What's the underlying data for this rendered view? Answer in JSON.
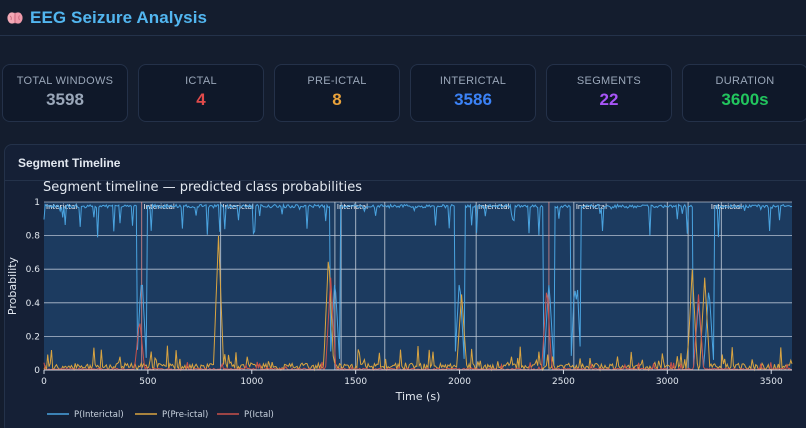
{
  "app": {
    "title": "EEG Seizure Analysis",
    "icon": "brain-icon"
  },
  "stats": [
    {
      "label": "TOTAL WINDOWS",
      "value": "3598",
      "color": "#9aa7b9"
    },
    {
      "label": "ICTAL",
      "value": "4",
      "color": "#e14b4b"
    },
    {
      "label": "PRE-ICTAL",
      "value": "8",
      "color": "#e9a23b"
    },
    {
      "label": "INTERICTAL",
      "value": "3586",
      "color": "#3b82f6"
    },
    {
      "label": "SEGMENTS",
      "value": "22",
      "color": "#a855f7"
    },
    {
      "label": "DURATION",
      "value": "3600s",
      "color": "#22c55e"
    }
  ],
  "panel": {
    "title": "Segment Timeline"
  },
  "chart_data": {
    "type": "line",
    "title": "Segment timeline — predicted class probabilities",
    "xlabel": "Time (s)",
    "ylabel": "Probability",
    "xlim": [
      0,
      3600
    ],
    "ylim": [
      0,
      1
    ],
    "x_ticks": [
      0,
      500,
      1000,
      1500,
      2000,
      2500,
      3000,
      3500
    ],
    "y_ticks": [
      0,
      0.2,
      0.4,
      0.6,
      0.8,
      1
    ],
    "y_tick_labels": [
      "0",
      "0.2",
      "0.4",
      "0.6",
      "0.8",
      "1"
    ],
    "grid": true,
    "legend": "bottom-left",
    "series": [
      {
        "name": "P(Interictal)",
        "color": "#4aa3df"
      },
      {
        "name": "P(Pre-ictal)",
        "color": "#d9a441"
      },
      {
        "name": "P(Ictal)",
        "color": "#c8504a"
      }
    ],
    "segment_markers": [
      {
        "x": 0,
        "label": "Interictal"
      },
      {
        "x": 470,
        "label": "Interictal"
      },
      {
        "x": 850,
        "label": "Interictal"
      },
      {
        "x": 1400,
        "label": "Interictal"
      },
      {
        "x": 2080,
        "label": "Interictal"
      },
      {
        "x": 2550,
        "label": "Interictal"
      },
      {
        "x": 3200,
        "label": "Interictal"
      }
    ],
    "segment_boundaries": [
      470,
      850,
      1400,
      1430,
      1500,
      1640,
      2080,
      2430,
      2550,
      3000,
      3100,
      3260
    ],
    "ictal_events": [
      {
        "x": 460,
        "y": 0.3
      },
      {
        "x": 1380,
        "y": 0.55
      },
      {
        "x": 2420,
        "y": 0.5
      },
      {
        "x": 3150,
        "y": 0.45
      }
    ],
    "preictal_peaks": [
      {
        "x": 840,
        "y": 0.8
      },
      {
        "x": 1370,
        "y": 0.7
      },
      {
        "x": 2010,
        "y": 0.45
      },
      {
        "x": 3120,
        "y": 0.6
      },
      {
        "x": 3180,
        "y": 0.55
      }
    ],
    "interictal_dips": [
      {
        "x": 470,
        "y": 0.6
      },
      {
        "x": 1400,
        "y": 0.55
      },
      {
        "x": 2000,
        "y": 0.55
      },
      {
        "x": 2430,
        "y": 0.55
      },
      {
        "x": 2560,
        "y": 0.7
      },
      {
        "x": 3150,
        "y": 0.4
      },
      {
        "x": 3200,
        "y": 0.5
      }
    ]
  }
}
